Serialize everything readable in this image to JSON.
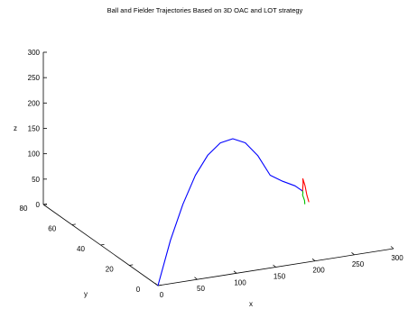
{
  "chart_data": {
    "type": "line",
    "projection": "3d",
    "title": "Ball and Fielder Trajectories Based on 3D OAC and LOT strategy",
    "xlabel": "x",
    "ylabel": "y",
    "zlabel": "z",
    "xlim": [
      0,
      300
    ],
    "ylim": [
      0,
      80
    ],
    "zlim": [
      0,
      300
    ],
    "x_ticks": [
      "0",
      "50",
      "100",
      "150",
      "200",
      "250",
      "300"
    ],
    "y_ticks": [
      "0",
      "20",
      "40",
      "60",
      "80"
    ],
    "z_ticks": [
      "0",
      "50",
      "100",
      "150",
      "200",
      "250",
      "300"
    ],
    "grid": false,
    "series": [
      {
        "color": "#0000ff",
        "x": [
          0,
          25,
          50,
          75,
          100,
          125,
          150,
          175,
          200,
          225,
          250,
          275,
          290
        ],
        "y": [
          0,
          5,
          10,
          15,
          20,
          25,
          30,
          35,
          40,
          45,
          50,
          55,
          58
        ],
        "z": [
          0,
          73,
          128,
          169,
          193,
          201,
          193,
          169,
          128,
          73,
          45,
          20,
          0
        ]
      },
      {
        "color": "#ff0000",
        "x": [
          265,
          268,
          273,
          278,
          283,
          287,
          290
        ],
        "y": [
          40,
          43,
          47,
          51,
          54,
          56,
          58
        ],
        "z": [
          21,
          28,
          37,
          39,
          34,
          20,
          0
        ]
      },
      {
        "color": "#00c000",
        "x": [
          260,
          267,
          273,
          279,
          285,
          290
        ],
        "y": [
          40,
          44,
          48,
          52,
          55,
          58
        ],
        "z": [
          18,
          15,
          11,
          7,
          4,
          0
        ]
      }
    ]
  }
}
